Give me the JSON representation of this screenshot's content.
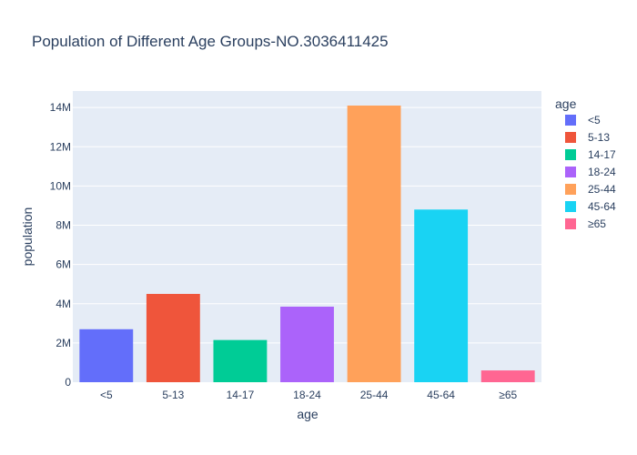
{
  "chart_data": {
    "type": "bar",
    "title": "Population of Different Age Groups-NO.3036411425",
    "xlabel": "age",
    "ylabel": "population",
    "categories": [
      "<5",
      "5-13",
      "14-17",
      "18-24",
      "25-44",
      "45-64",
      "≥65"
    ],
    "values": [
      2700000,
      4500000,
      2150000,
      3850000,
      14100000,
      8800000,
      600000
    ],
    "colors": [
      "#636efa",
      "#EF553B",
      "#00cc96",
      "#ab63fa",
      "#FFA15A",
      "#19d3f3",
      "#FF6692"
    ],
    "ylim": [
      0,
      14842105
    ],
    "yticks": [
      0,
      2000000,
      4000000,
      6000000,
      8000000,
      10000000,
      12000000,
      14000000
    ],
    "ytick_labels": [
      "0",
      "2M",
      "4M",
      "6M",
      "8M",
      "10M",
      "12M",
      "14M"
    ],
    "grid": true,
    "legend": {
      "title": "age",
      "placement": "right",
      "entries": [
        "<5",
        "5-13",
        "14-17",
        "18-24",
        "25-44",
        "45-64",
        "≥65"
      ]
    },
    "plot_bgcolor": "#e5ecf6",
    "text_color": "#2a3f5f"
  }
}
